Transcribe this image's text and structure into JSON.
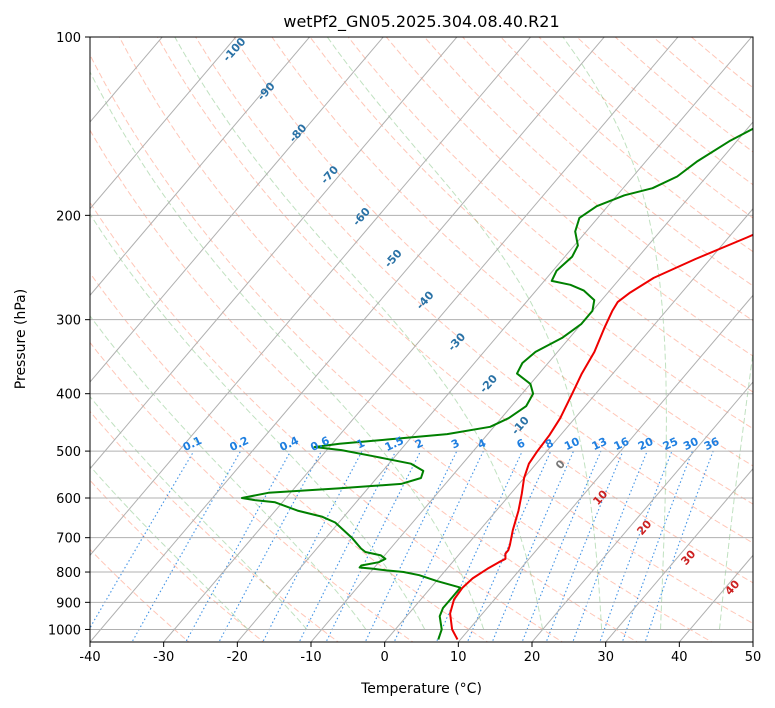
{
  "chart_data": {
    "type": "line",
    "chart_kind": "skew-t log-p",
    "title": "wetPf2_GN05.2025.304.08.40.R21",
    "xlabel": "Temperature (°C)",
    "ylabel": "Pressure (hPa)",
    "xlim": [
      -40,
      50
    ],
    "ylim": [
      1050,
      100
    ],
    "y_scale": "log",
    "grid": true,
    "x_ticks": [
      -40,
      -30,
      -20,
      -10,
      0,
      10,
      20,
      30,
      40,
      50
    ],
    "y_ticks": [
      100,
      200,
      300,
      400,
      500,
      600,
      700,
      800,
      900,
      1000
    ],
    "series": [
      {
        "role": "temperature",
        "color": "#ee0000",
        "points": [
          {
            "x": 9.6,
            "y": 1040
          },
          {
            "x": 7.7,
            "y": 1000
          },
          {
            "x": 5.6,
            "y": 940
          },
          {
            "x": 4.5,
            "y": 890
          },
          {
            "x": 4.3,
            "y": 850
          },
          {
            "x": 4.6,
            "y": 820
          },
          {
            "x": 5.5,
            "y": 790
          },
          {
            "x": 6.3,
            "y": 770
          },
          {
            "x": 6.8,
            "y": 760
          },
          {
            "x": 6.2,
            "y": 745
          },
          {
            "x": 6.2,
            "y": 735
          },
          {
            "x": 5.8,
            "y": 720
          },
          {
            "x": 4.5,
            "y": 680
          },
          {
            "x": 3.0,
            "y": 630
          },
          {
            "x": 1.5,
            "y": 590
          },
          {
            "x": 0.0,
            "y": 555
          },
          {
            "x": -1.0,
            "y": 525
          },
          {
            "x": -1.3,
            "y": 500
          },
          {
            "x": -1.5,
            "y": 470
          },
          {
            "x": -2.0,
            "y": 440
          },
          {
            "x": -3.2,
            "y": 400
          },
          {
            "x": -4.2,
            "y": 370
          },
          {
            "x": -5.0,
            "y": 340
          },
          {
            "x": -6.4,
            "y": 310
          },
          {
            "x": -7.3,
            "y": 290
          },
          {
            "x": -7.6,
            "y": 280
          },
          {
            "x": -7.0,
            "y": 270
          },
          {
            "x": -5.5,
            "y": 255
          },
          {
            "x": -2.0,
            "y": 237
          },
          {
            "x": 2.5,
            "y": 218
          },
          {
            "x": 6.0,
            "y": 203
          },
          {
            "x": 9.3,
            "y": 185
          },
          {
            "x": 12.0,
            "y": 168
          },
          {
            "x": 14.0,
            "y": 153
          },
          {
            "x": 16.0,
            "y": 140
          },
          {
            "x": 18.5,
            "y": 130
          },
          {
            "x": 20.5,
            "y": 122
          },
          {
            "x": 23.0,
            "y": 115
          },
          {
            "x": 25.5,
            "y": 107
          },
          {
            "x": 27.5,
            "y": 100
          }
        ]
      },
      {
        "role": "dewpoint",
        "color": "#008000",
        "points": [
          {
            "x": 7.0,
            "y": 1040
          },
          {
            "x": 6.3,
            "y": 1000
          },
          {
            "x": 4.5,
            "y": 950
          },
          {
            "x": 4.0,
            "y": 920
          },
          {
            "x": 4.0,
            "y": 880
          },
          {
            "x": 4.0,
            "y": 850
          },
          {
            "x": 0.0,
            "y": 828
          },
          {
            "x": -3.0,
            "y": 810
          },
          {
            "x": -5.5,
            "y": 800
          },
          {
            "x": -8.0,
            "y": 795
          },
          {
            "x": -10.0,
            "y": 790
          },
          {
            "x": -12.0,
            "y": 786
          },
          {
            "x": -12.0,
            "y": 780
          },
          {
            "x": -10.0,
            "y": 770
          },
          {
            "x": -9.5,
            "y": 760
          },
          {
            "x": -10.5,
            "y": 750
          },
          {
            "x": -13.0,
            "y": 740
          },
          {
            "x": -14.0,
            "y": 730
          },
          {
            "x": -16.5,
            "y": 700
          },
          {
            "x": -20.5,
            "y": 660
          },
          {
            "x": -23.0,
            "y": 645
          },
          {
            "x": -27.0,
            "y": 630
          },
          {
            "x": -31.0,
            "y": 610
          },
          {
            "x": -34.0,
            "y": 605
          },
          {
            "x": -36.0,
            "y": 600
          },
          {
            "x": -33.0,
            "y": 588
          },
          {
            "x": -24.0,
            "y": 578
          },
          {
            "x": -16.0,
            "y": 568
          },
          {
            "x": -14.0,
            "y": 555
          },
          {
            "x": -14.5,
            "y": 540
          },
          {
            "x": -17.0,
            "y": 525
          },
          {
            "x": -23.0,
            "y": 510
          },
          {
            "x": -28.0,
            "y": 498
          },
          {
            "x": -32.0,
            "y": 492
          },
          {
            "x": -29.0,
            "y": 486
          },
          {
            "x": -23.0,
            "y": 478
          },
          {
            "x": -15.5,
            "y": 468
          },
          {
            "x": -10.5,
            "y": 455
          },
          {
            "x": -9.0,
            "y": 440
          },
          {
            "x": -8.0,
            "y": 420
          },
          {
            "x": -8.5,
            "y": 400
          },
          {
            "x": -10.0,
            "y": 385
          },
          {
            "x": -13.0,
            "y": 370
          },
          {
            "x": -13.5,
            "y": 355
          },
          {
            "x": -13.0,
            "y": 340
          },
          {
            "x": -11.0,
            "y": 322
          },
          {
            "x": -10.0,
            "y": 305
          },
          {
            "x": -10.0,
            "y": 290
          },
          {
            "x": -11.0,
            "y": 278
          },
          {
            "x": -13.5,
            "y": 268
          },
          {
            "x": -16.0,
            "y": 262
          },
          {
            "x": -19.0,
            "y": 258
          },
          {
            "x": -19.5,
            "y": 248
          },
          {
            "x": -19.0,
            "y": 235
          },
          {
            "x": -19.5,
            "y": 225
          },
          {
            "x": -21.5,
            "y": 213
          },
          {
            "x": -22.5,
            "y": 202
          },
          {
            "x": -21.5,
            "y": 193
          },
          {
            "x": -19.0,
            "y": 185
          },
          {
            "x": -16.0,
            "y": 180
          },
          {
            "x": -14.0,
            "y": 172
          },
          {
            "x": -13.0,
            "y": 162
          },
          {
            "x": -11.0,
            "y": 150
          },
          {
            "x": -9.0,
            "y": 142
          },
          {
            "x": -7.5,
            "y": 135
          },
          {
            "x": -6.0,
            "y": 125
          },
          {
            "x": -3.5,
            "y": 116
          },
          {
            "x": -1.0,
            "y": 108
          },
          {
            "x": 0.5,
            "y": 102
          },
          {
            "x": 1.0,
            "y": 100
          }
        ]
      }
    ],
    "isotherms": {
      "color": "#b0b0b0",
      "every_c": 10
    },
    "dry_adiabats": {
      "color": "#ff8060",
      "style": "dashed",
      "labels": [
        "10",
        "20",
        "30",
        "40"
      ],
      "label_color": "#cc2020"
    },
    "moist_adiabats": {
      "color": "#4aa84a",
      "style": "dashed",
      "labels": [
        "-100",
        "-90",
        "-80",
        "-70",
        "-60",
        "-50",
        "-40",
        "-30",
        "-20",
        "-10"
      ],
      "label_color": "#2a72a6",
      "zero_label": "0",
      "zero_label_color": "#777777"
    },
    "mixing_ratio_lines": {
      "color": "#1f7fe0",
      "style": "dotted",
      "labels": [
        "0.1",
        "0.2",
        "0.4",
        "0.6",
        "1",
        "1.5",
        "2",
        "3",
        "4",
        "6",
        "8",
        "10",
        "13",
        "16",
        "20",
        "25",
        "30",
        "36"
      ],
      "label_color": "#1f7fe0"
    }
  }
}
